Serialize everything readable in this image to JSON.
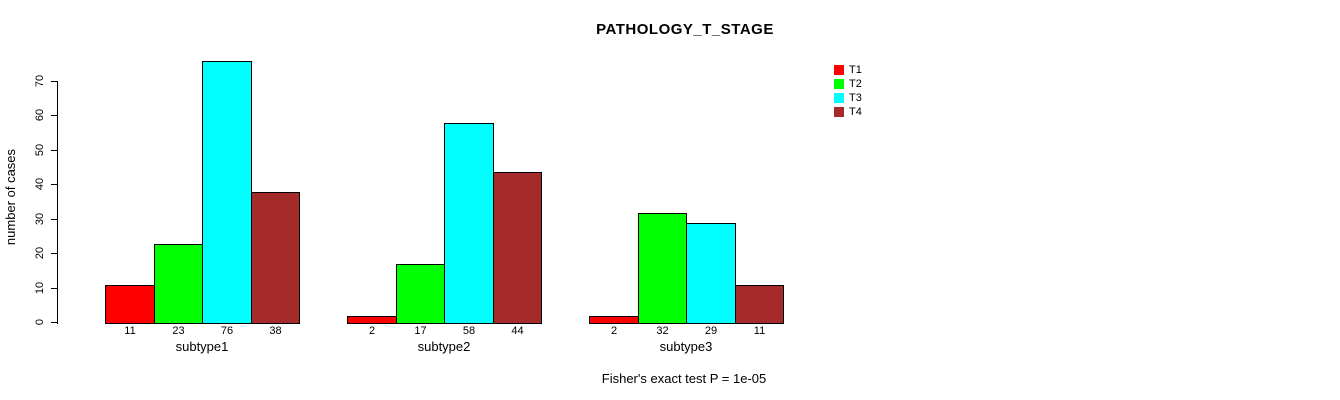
{
  "chart_data": {
    "type": "bar",
    "grouped": true,
    "title": "PATHOLOGY_T_STAGE",
    "ylabel": "number of cases",
    "xlabel": "",
    "annotation": "Fisher's exact test P = 1e-05",
    "categories": [
      "subtype1",
      "subtype2",
      "subtype3"
    ],
    "series": [
      {
        "name": "T1",
        "color": "#ff0000",
        "values": [
          11,
          2,
          2
        ]
      },
      {
        "name": "T2",
        "color": "#00ff00",
        "values": [
          23,
          17,
          32
        ]
      },
      {
        "name": "T3",
        "color": "#00ffff",
        "values": [
          76,
          58,
          29
        ]
      },
      {
        "name": "T4",
        "color": "#a52a2a",
        "values": [
          38,
          44,
          11
        ]
      }
    ],
    "yticks": [
      0,
      10,
      20,
      30,
      40,
      50,
      60,
      70
    ],
    "ylim": [
      0,
      76
    ],
    "grid": false,
    "bar_value_labels": true,
    "legend_position": "top-right",
    "background_color": "#ffffff",
    "text_color": "#000000"
  }
}
